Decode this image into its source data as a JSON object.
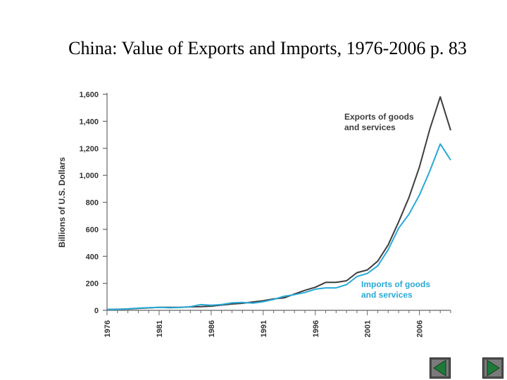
{
  "slide": {
    "title": "China: Value of Exports and Imports, 1976-2006 p. 83"
  },
  "chart_data": {
    "type": "line",
    "title": "China: Value of Exports and Imports, 1976-2006 p. 83",
    "xlabel": "",
    "ylabel": "Billions of U.S. Dollars",
    "ylim": [
      0,
      1600
    ],
    "yticks": [
      0,
      200,
      400,
      600,
      800,
      1000,
      1200,
      1400,
      1600
    ],
    "ytick_labels": [
      "0",
      "200",
      "400",
      "600",
      "800",
      "1,000",
      "1,200",
      "1,400",
      "1,600"
    ],
    "xlim": [
      1976,
      2009
    ],
    "xticks": [
      1976,
      1981,
      1986,
      1991,
      1996,
      2001,
      2006
    ],
    "xtick_labels": [
      "1976",
      "1981",
      "1986",
      "1991",
      "1996",
      "2001",
      "2006"
    ],
    "grid": false,
    "series": [
      {
        "name": "Exports of goods and services",
        "label_lines": [
          "Exports of goods",
          "and services"
        ],
        "color": "#3d3d3d",
        "x": [
          1976,
          1977,
          1978,
          1979,
          1980,
          1981,
          1982,
          1983,
          1984,
          1985,
          1986,
          1987,
          1988,
          1989,
          1990,
          1991,
          1992,
          1993,
          1994,
          1995,
          1996,
          1997,
          1998,
          1999,
          2000,
          2001,
          2002,
          2003,
          2004,
          2005,
          2006,
          2007,
          2008,
          2009
        ],
        "values": [
          7,
          8,
          10,
          14,
          18,
          22,
          22,
          22,
          26,
          27,
          31,
          39,
          47,
          52,
          62,
          71,
          85,
          92,
          121,
          148,
          171,
          207,
          207,
          219,
          279,
          299,
          365,
          485,
          655,
          836,
          1061,
          1342,
          1581,
          1333
        ]
      },
      {
        "name": "Imports of goods and services",
        "label_lines": [
          "Imports of goods",
          "and services"
        ],
        "color": "#29a9d6",
        "x": [
          1976,
          1977,
          1978,
          1979,
          1980,
          1981,
          1982,
          1983,
          1984,
          1985,
          1986,
          1987,
          1988,
          1989,
          1990,
          1991,
          1992,
          1993,
          1994,
          1995,
          1996,
          1997,
          1998,
          1999,
          2000,
          2001,
          2002,
          2003,
          2004,
          2005,
          2006,
          2007,
          2008,
          2009
        ],
        "values": [
          6,
          7,
          11,
          16,
          20,
          22,
          19,
          21,
          27,
          42,
          38,
          43,
          55,
          59,
          53,
          64,
          81,
          104,
          116,
          132,
          157,
          166,
          166,
          190,
          250,
          273,
          330,
          450,
          608,
          712,
          853,
          1032,
          1232,
          1113
        ]
      }
    ]
  },
  "nav": {
    "prev_icon": "previous-slide-icon",
    "next_icon": "next-slide-icon"
  }
}
